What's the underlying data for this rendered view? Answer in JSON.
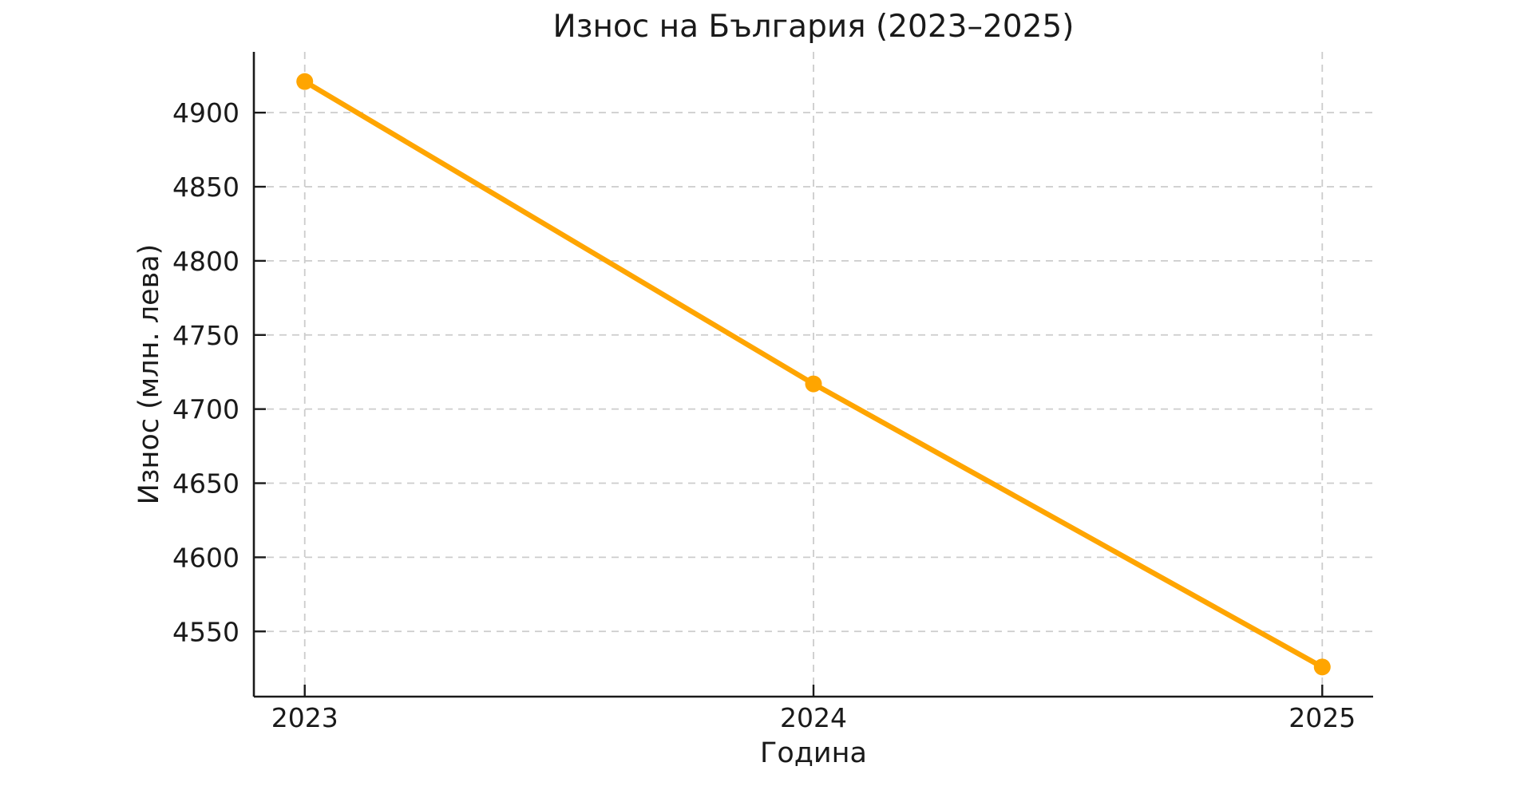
{
  "chart_data": {
    "type": "line",
    "title": "Износ на България (2023–2025)",
    "xlabel": "Година",
    "ylabel": "Износ (млн. лева)",
    "categories": [
      "2023",
      "2024",
      "2025"
    ],
    "series": [
      {
        "name": "Износ",
        "values": [
          4921,
          4717,
          4526
        ]
      }
    ],
    "ylim": [
      4506,
      4941
    ],
    "yticks": [
      4550,
      4600,
      4650,
      4700,
      4750,
      4800,
      4850,
      4900
    ],
    "grid": "on",
    "grid_style": "dashed",
    "legend": "none",
    "colors": {
      "line": "#FFA500",
      "marker": "#FFA500",
      "grid": "#cccccc",
      "text": "#1a1a1a",
      "background": "#ffffff"
    }
  }
}
